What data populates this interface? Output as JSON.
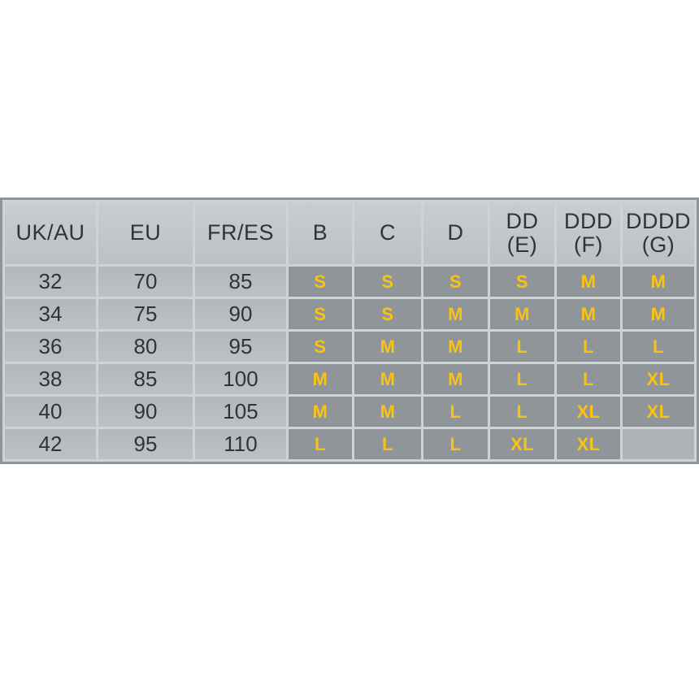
{
  "colors": {
    "accent_yellow": "#fbc30f",
    "dark_text": "#303436",
    "header_bg": "#c3c7c9",
    "num_cell_bg": "#b6bbbd",
    "size_cell_bg": "#8f9598",
    "empty_cell_bg": "#aeb4b6",
    "grid": "#ced3d6",
    "border": "#8f9597"
  },
  "table": {
    "header_display": [
      "UK/AU",
      "EU",
      "FR/ES",
      "B",
      "C",
      "D",
      "DD\n(E)",
      "DDD\n(F)",
      "DDDD\n(G)"
    ],
    "header_keys": [
      "uk-au",
      "eu",
      "fr-es",
      "b",
      "c",
      "d",
      "dd-e",
      "ddd-f",
      "dddd-g"
    ]
  },
  "chart_data": {
    "type": "table",
    "columns": [
      "UK/AU",
      "EU",
      "FR/ES",
      "B",
      "C",
      "D",
      "DD (E)",
      "DDD (F)",
      "DDDD (G)"
    ],
    "rows": [
      [
        "32",
        "70",
        "85",
        "S",
        "S",
        "S",
        "S",
        "M",
        "M"
      ],
      [
        "34",
        "75",
        "90",
        "S",
        "S",
        "M",
        "M",
        "M",
        "M"
      ],
      [
        "36",
        "80",
        "95",
        "S",
        "M",
        "M",
        "L",
        "L",
        "L"
      ],
      [
        "38",
        "85",
        "100",
        "M",
        "M",
        "M",
        "L",
        "L",
        "XL"
      ],
      [
        "40",
        "90",
        "105",
        "M",
        "M",
        "L",
        "L",
        "XL",
        "XL"
      ],
      [
        "42",
        "95",
        "110",
        "L",
        "L",
        "L",
        "XL",
        "XL",
        ""
      ]
    ],
    "notes": "Bra size conversion chart: band sizes UK/AU vs EU vs FR/ES, cup columns B-DDDD(G) mapped to garment sizes S/M/L/XL; last cell (42 / DDDD) is blank"
  }
}
